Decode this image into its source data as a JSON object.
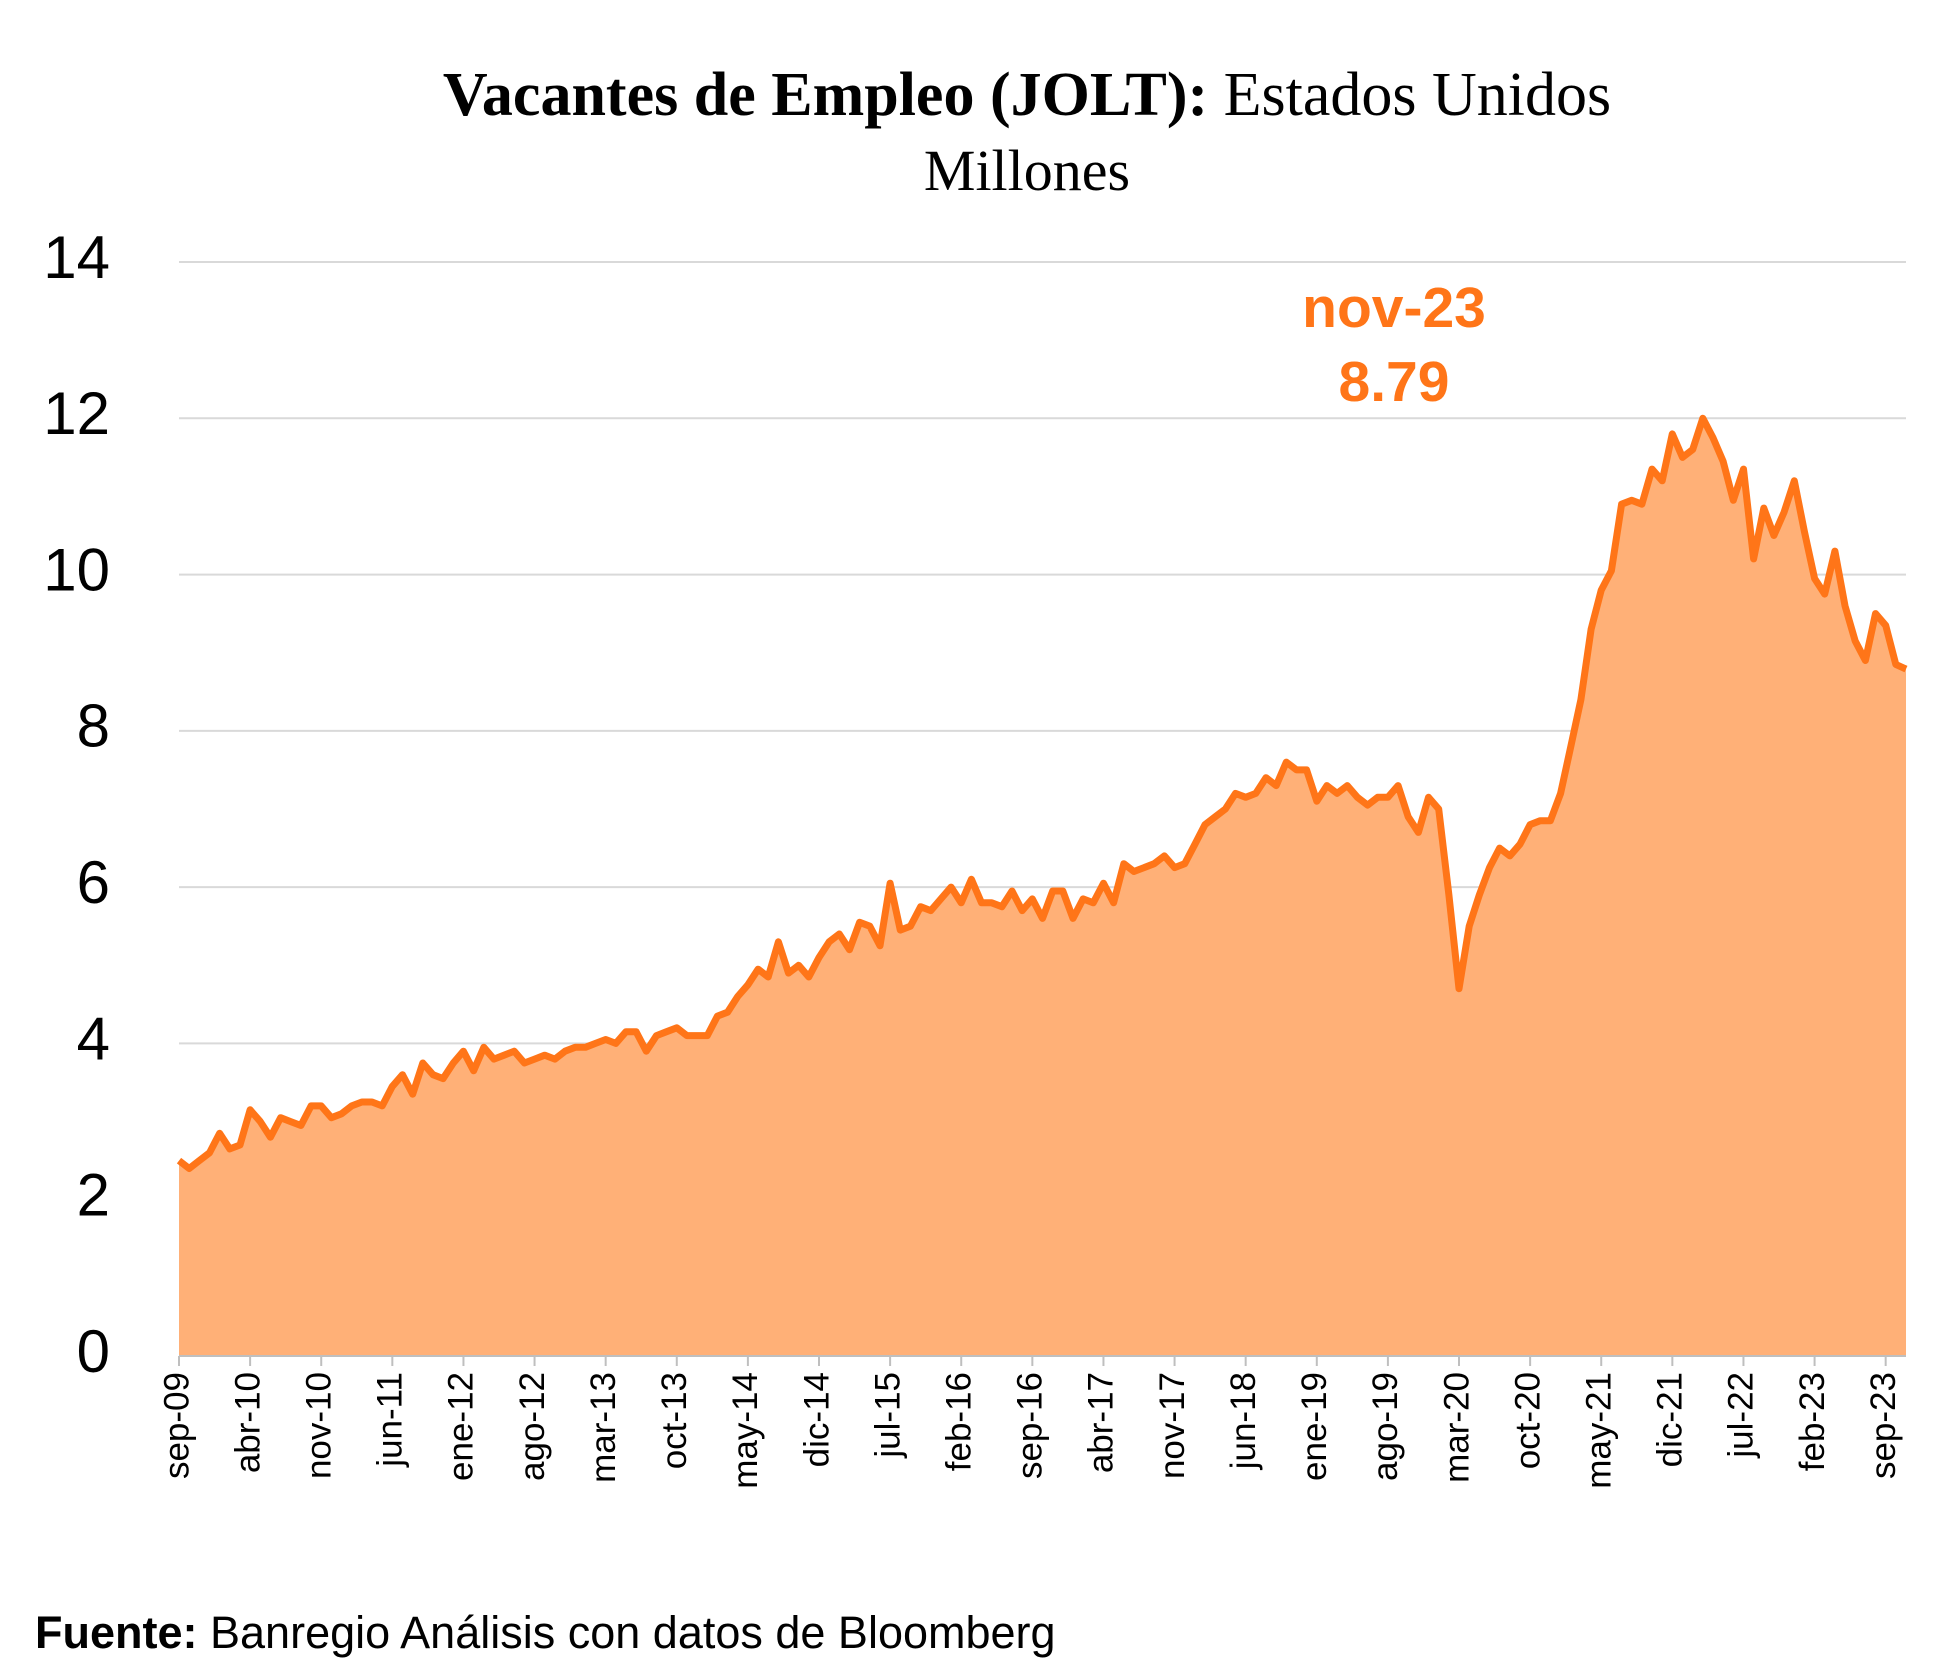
{
  "chart_data": {
    "type": "area",
    "title_bold": "Vacantes de Empleo (JOLT):",
    "title": "Estados Unidos",
    "subtitle": "Millones",
    "source_label": "Fuente:",
    "source": "Banregio Análisis con datos de Bloomberg",
    "annotation": {
      "label": "nov-23"
    },
    "color": "#ff7518",
    "fill": "#ffb077",
    "grid": true,
    "ylim": [
      0,
      14
    ],
    "yticks": [
      0,
      2,
      4,
      6,
      8,
      10,
      12,
      14
    ],
    "categories": [
      "sep-09",
      null,
      null,
      null,
      null,
      null,
      null,
      "abr-10",
      null,
      null,
      null,
      null,
      null,
      null,
      "nov-10",
      null,
      null,
      null,
      null,
      null,
      null,
      "jun-11",
      null,
      null,
      null,
      null,
      null,
      null,
      "ene-12",
      null,
      null,
      null,
      null,
      null,
      null,
      "ago-12",
      null,
      null,
      null,
      null,
      null,
      null,
      "mar-13",
      null,
      null,
      null,
      null,
      null,
      null,
      "oct-13",
      null,
      null,
      null,
      null,
      null,
      null,
      "may-14",
      null,
      null,
      null,
      null,
      null,
      null,
      "dic-14",
      null,
      null,
      null,
      null,
      null,
      null,
      "jul-15",
      null,
      null,
      null,
      null,
      null,
      null,
      "feb-16",
      null,
      null,
      null,
      null,
      null,
      null,
      "sep-16",
      null,
      null,
      null,
      null,
      null,
      null,
      "abr-17",
      null,
      null,
      null,
      null,
      null,
      null,
      "nov-17",
      null,
      null,
      null,
      null,
      null,
      null,
      "jun-18",
      null,
      null,
      null,
      null,
      null,
      null,
      "ene-19",
      null,
      null,
      null,
      null,
      null,
      null,
      "ago-19",
      null,
      null,
      null,
      null,
      null,
      null,
      "mar-20",
      null,
      null,
      null,
      null,
      null,
      null,
      "oct-20",
      null,
      null,
      null,
      null,
      null,
      null,
      "may-21",
      null,
      null,
      null,
      null,
      null,
      null,
      "dic-21",
      null,
      null,
      null,
      null,
      null,
      null,
      "jul-22",
      null,
      null,
      null,
      null,
      null,
      null,
      "feb-23",
      null,
      null,
      null,
      null,
      null,
      null,
      "sep-23",
      null,
      null
    ],
    "values": [
      2.5,
      2.4,
      2.5,
      2.6,
      2.85,
      2.65,
      2.7,
      3.15,
      3.0,
      2.8,
      3.05,
      3.0,
      2.95,
      3.2,
      3.2,
      3.05,
      3.1,
      3.2,
      3.25,
      3.25,
      3.2,
      3.45,
      3.6,
      3.35,
      3.75,
      3.6,
      3.55,
      3.75,
      3.9,
      3.65,
      3.95,
      3.8,
      3.85,
      3.9,
      3.75,
      3.8,
      3.85,
      3.8,
      3.9,
      3.95,
      3.95,
      4.0,
      4.05,
      4.0,
      4.15,
      4.15,
      3.9,
      4.1,
      4.15,
      4.2,
      4.1,
      4.1,
      4.1,
      4.35,
      4.4,
      4.6,
      4.75,
      4.95,
      4.85,
      5.3,
      4.9,
      5.0,
      4.85,
      5.1,
      5.3,
      5.4,
      5.2,
      5.55,
      5.5,
      5.25,
      6.05,
      5.45,
      5.5,
      5.75,
      5.7,
      5.85,
      6.0,
      5.8,
      6.1,
      5.8,
      5.8,
      5.75,
      5.95,
      5.7,
      5.85,
      5.6,
      5.95,
      5.95,
      5.6,
      5.85,
      5.8,
      6.05,
      5.8,
      6.3,
      6.2,
      6.25,
      6.3,
      6.4,
      6.25,
      6.3,
      6.55,
      6.8,
      6.9,
      7.0,
      7.2,
      7.15,
      7.2,
      7.4,
      7.3,
      7.6,
      7.5,
      7.5,
      7.1,
      7.3,
      7.2,
      7.3,
      7.15,
      7.05,
      7.15,
      7.15,
      7.3,
      6.9,
      6.7,
      7.15,
      7.0,
      5.9,
      4.7,
      5.5,
      5.9,
      6.25,
      6.5,
      6.4,
      6.55,
      6.8,
      6.85,
      6.85,
      7.2,
      7.8,
      8.4,
      9.3,
      9.8,
      10.05,
      10.9,
      10.95,
      10.9,
      11.35,
      11.2,
      11.8,
      11.5,
      11.6,
      12.0,
      11.75,
      11.45,
      10.95,
      11.35,
      10.2,
      10.85,
      10.5,
      10.8,
      11.2,
      10.55,
      9.95,
      9.75,
      10.3,
      9.6,
      9.15,
      8.9,
      9.5,
      9.35,
      8.85,
      8.79
    ]
  }
}
